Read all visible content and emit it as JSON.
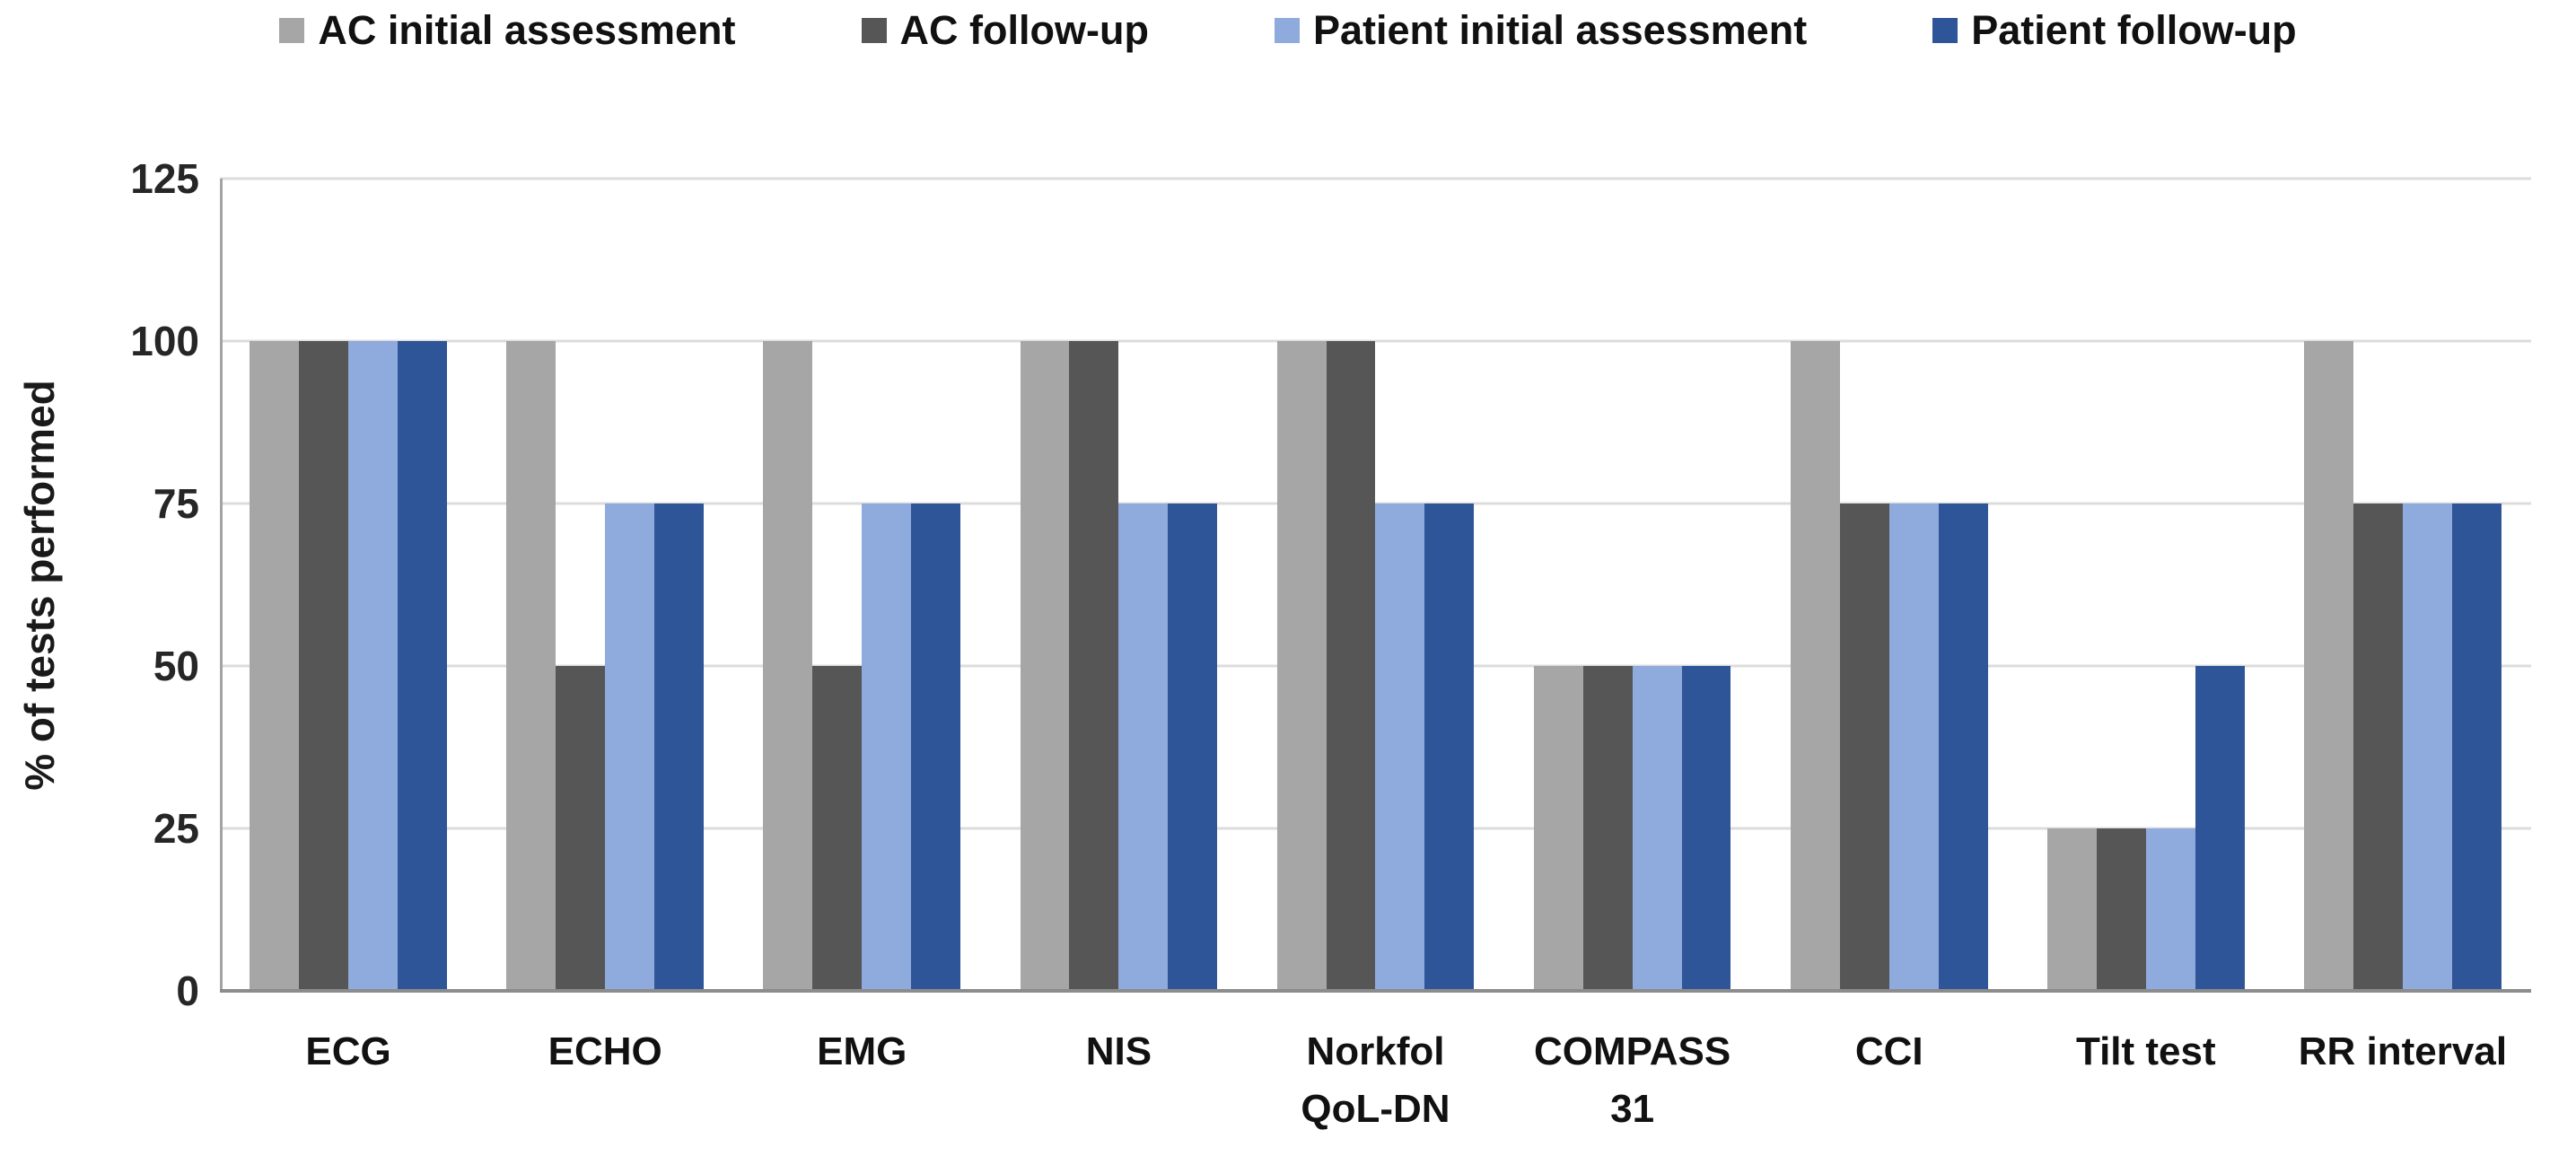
{
  "legend": {
    "items": [
      {
        "label": "AC initial assessment",
        "color": "#a6a6a6"
      },
      {
        "label": "AC follow-up",
        "color": "#565656"
      },
      {
        "label": "Patient initial assessment",
        "color": "#8faadc"
      },
      {
        "label": "Patient follow-up",
        "color": "#2e5597"
      }
    ]
  },
  "chart_data": {
    "type": "bar",
    "title": "",
    "xlabel": "",
    "ylabel": "% of tests performed",
    "ylim": [
      0,
      125
    ],
    "yticks": [
      0,
      25,
      50,
      75,
      100,
      125
    ],
    "grid": true,
    "legend_position": "top",
    "categories": [
      "ECG",
      "ECHO",
      "EMG",
      "NIS",
      "Norkfol\nQoL-DN",
      "COMPASS\n31",
      "CCI",
      "Tilt test",
      "RR interval"
    ],
    "series": [
      {
        "name": "AC initial assessment",
        "color": "#a6a6a6",
        "values": [
          100,
          100,
          100,
          100,
          100,
          50,
          100,
          25,
          100
        ]
      },
      {
        "name": "AC follow-up",
        "color": "#565656",
        "values": [
          100,
          50,
          50,
          100,
          100,
          50,
          75,
          25,
          75
        ]
      },
      {
        "name": "Patient initial assessment",
        "color": "#8faadc",
        "values": [
          100,
          75,
          75,
          75,
          75,
          50,
          75,
          25,
          75
        ]
      },
      {
        "name": "Patient follow-up",
        "color": "#2e5597",
        "values": [
          100,
          75,
          75,
          75,
          75,
          50,
          75,
          50,
          75
        ]
      }
    ]
  }
}
